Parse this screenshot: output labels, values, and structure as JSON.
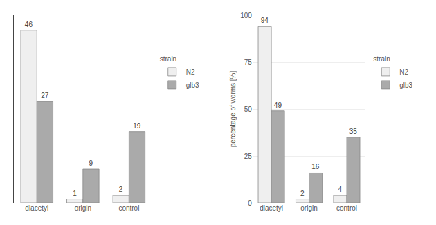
{
  "chart_data": [
    {
      "type": "bar",
      "categories": [
        "diacetyl",
        "origin",
        "control"
      ],
      "series": [
        {
          "name": "N2",
          "color": "#efefef",
          "values": [
            46,
            1,
            2
          ]
        },
        {
          "name": "glb3––",
          "color": "#aaaaaa",
          "values": [
            27,
            9,
            19
          ]
        }
      ],
      "ylim": [
        0,
        50
      ],
      "yticks": [],
      "grid": false,
      "tick_labels": "x",
      "data_labels": true,
      "legend": "right",
      "legend_title": "strain"
    },
    {
      "type": "bar",
      "categories": [
        "diacetyl",
        "origin",
        "control"
      ],
      "series": [
        {
          "name": "N2",
          "color": "#efefef",
          "values": [
            94,
            2,
            4
          ]
        },
        {
          "name": "glb3––",
          "color": "#aaaaaa",
          "values": [
            49,
            16,
            35
          ]
        }
      ],
      "ylabel": "percentage of worms [%]",
      "ylim": [
        0,
        100
      ],
      "yticks": [
        0,
        25,
        50,
        75,
        100
      ],
      "grid": true,
      "data_labels": true,
      "legend": "right",
      "legend_title": "strain"
    }
  ]
}
